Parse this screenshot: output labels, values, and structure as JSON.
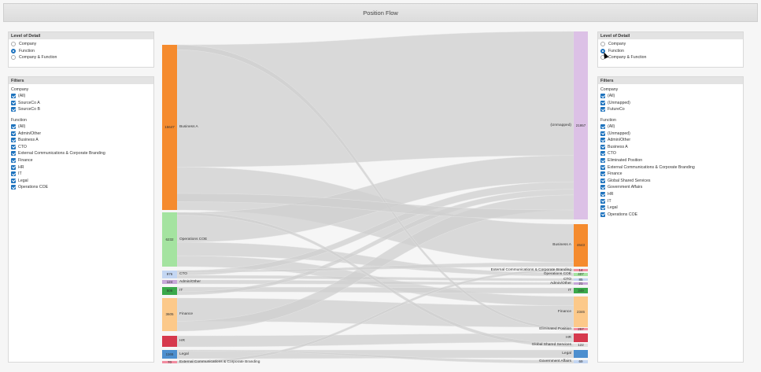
{
  "window": {
    "title": "Position Flow"
  },
  "left": {
    "level_title": "Level of Detail",
    "level_options": [
      {
        "label": "Company",
        "selected": false
      },
      {
        "label": "Function",
        "selected": true
      },
      {
        "label": "Company & Function",
        "selected": false
      }
    ],
    "filters_title": "Filters",
    "company_title": "Company",
    "company_items": [
      "(All)",
      "SourceCo A",
      "SourceCo B"
    ],
    "function_title": "Function",
    "function_items": [
      "(All)",
      "Admin/Other",
      "Business A",
      "CTO",
      "External Communications & Corporate Branding",
      "Finance",
      "HR",
      "IT",
      "Legal",
      "Operations COE"
    ]
  },
  "right": {
    "level_title": "Level of Detail",
    "level_options": [
      {
        "label": "Company",
        "selected": false
      },
      {
        "label": "Function",
        "selected": true
      },
      {
        "label": "Company & Function",
        "selected": false
      }
    ],
    "filters_title": "Filters",
    "company_title": "Company",
    "company_items": [
      "(All)",
      "(Unmapped)",
      "FutureCo"
    ],
    "function_title": "Function",
    "function_items": [
      "(All)",
      "(Unmapped)",
      "Admin/Other",
      "Business A",
      "CTO",
      "Eliminated Position",
      "External Communications & Corporate Branding",
      "Finance",
      "Global Shared Services",
      "Government Affairs",
      "HR",
      "IT",
      "Legal",
      "Operations COE"
    ]
  },
  "sankey": {
    "left_nodes": [
      {
        "label": "Business A",
        "value": "15647",
        "color": "#f58b2e"
      },
      {
        "label": "Operations COE",
        "value": "6232",
        "color": "#a4e3a0"
      },
      {
        "label": "CTO",
        "value": "976",
        "color": "#c3d6f2"
      },
      {
        "label": "Admin/Other",
        "value": "124",
        "color": "#c7a6d8"
      },
      {
        "label": "IT",
        "value": "506",
        "color": "#3aa84a"
      },
      {
        "label": "Finance",
        "value": "3605",
        "color": "#fcc98a"
      },
      {
        "label": "HR",
        "value": "",
        "color": "#d6394d"
      },
      {
        "label": "Legal",
        "value": "1165",
        "color": "#4d8fcf"
      },
      {
        "label": "External Communications & Corporate Branding",
        "value": "70",
        "color": "#f28ca0"
      }
    ],
    "right_nodes": [
      {
        "label": "(Unmapped)",
        "value": "21957",
        "color": "#dcc1e6"
      },
      {
        "label": "Business A",
        "value": "4643",
        "color": "#f58b2e"
      },
      {
        "label": "External Communications & Corporate Branding",
        "value": "14",
        "color": "#f28ca0"
      },
      {
        "label": "Operations COE",
        "value": "407",
        "color": "#a4e3a0"
      },
      {
        "label": "CTO",
        "value": "85",
        "color": "#c3d6f2"
      },
      {
        "label": "Admin/Other",
        "value": "21",
        "color": "#c7a6d8"
      },
      {
        "label": "IT",
        "value": "349",
        "color": "#3aa84a"
      },
      {
        "label": "Finance",
        "value": "2346",
        "color": "#fcc98a"
      },
      {
        "label": "Eliminated Position",
        "value": "257",
        "color": "#f28ca0"
      },
      {
        "label": "HR",
        "value": "",
        "color": "#d6394d"
      },
      {
        "label": "Global Shared Services",
        "value": "122",
        "color": "#e0e0e0"
      },
      {
        "label": "Legal",
        "value": "",
        "color": "#4d8fcf"
      },
      {
        "label": "Government Affairs",
        "value": "69",
        "color": "#c3d6f2"
      }
    ]
  }
}
